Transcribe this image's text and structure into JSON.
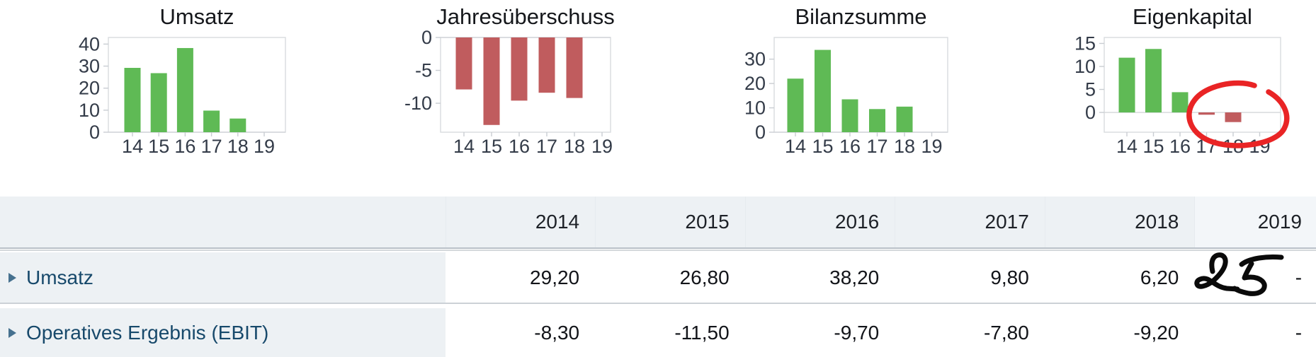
{
  "chart_data": [
    {
      "type": "bar",
      "title": "Umsatz",
      "categories": [
        "14",
        "15",
        "16",
        "17",
        "18",
        "19"
      ],
      "values": [
        29.2,
        26.8,
        38.2,
        9.8,
        6.2,
        null
      ],
      "yticks": [
        0,
        10,
        20,
        30,
        40
      ],
      "ylim": [
        0,
        43
      ],
      "xlabel": "",
      "ylabel": "",
      "grid": false,
      "legend": "none"
    },
    {
      "type": "bar",
      "title": "Jahresüberschuss",
      "categories": [
        "14",
        "15",
        "16",
        "17",
        "18",
        "19"
      ],
      "values": [
        -7.9,
        -13.3,
        -9.6,
        -8.4,
        -9.2,
        null
      ],
      "yticks": [
        0,
        -5,
        -10
      ],
      "ylim": [
        -14.4,
        0
      ],
      "xlabel": "",
      "ylabel": "",
      "grid": false,
      "legend": "none"
    },
    {
      "type": "bar",
      "title": "Bilanzsumme",
      "categories": [
        "14",
        "15",
        "16",
        "17",
        "18",
        "19"
      ],
      "values": [
        22,
        33.8,
        13.5,
        9.5,
        10.5,
        null
      ],
      "yticks": [
        0,
        10,
        20,
        30
      ],
      "ylim": [
        0,
        38.9
      ],
      "xlabel": "",
      "ylabel": "",
      "grid": false,
      "legend": "none"
    },
    {
      "type": "bar",
      "title": "Eigenkapital",
      "categories": [
        "14",
        "15",
        "16",
        "17",
        "18",
        "19"
      ],
      "values": [
        11.9,
        13.8,
        4.4,
        -0.5,
        -2.1,
        null
      ],
      "yticks": [
        0,
        5,
        10,
        15
      ],
      "ylim": [
        -4.3,
        16.3
      ],
      "xlabel": "",
      "ylabel": "",
      "grid": false,
      "legend": "none"
    }
  ],
  "table": {
    "years": [
      "2014",
      "2015",
      "2016",
      "2017",
      "2018",
      "2019"
    ],
    "rows": [
      {
        "label": "Umsatz",
        "values": [
          "29,20",
          "26,80",
          "38,20",
          "9,80",
          "6,20",
          "-"
        ]
      },
      {
        "label": "Operatives Ergebnis (EBIT)",
        "values": [
          "-8,30",
          "-11,50",
          "-9,70",
          "-7,80",
          "-9,20",
          "-"
        ]
      }
    ]
  },
  "annotations": {
    "handwritten_value": "25",
    "circled_region": "Eigenkapital 17-19",
    "circle_color": "#e92425",
    "ink_color": "#0a0a0a"
  },
  "colors": {
    "positive_bar": "#5fba55",
    "negative_bar": "#c05c5e",
    "header_bg": "#edf1f4",
    "row_label_text": "#17496b",
    "axis_text": "#333b48",
    "plot_border": "#d9dcdf"
  }
}
